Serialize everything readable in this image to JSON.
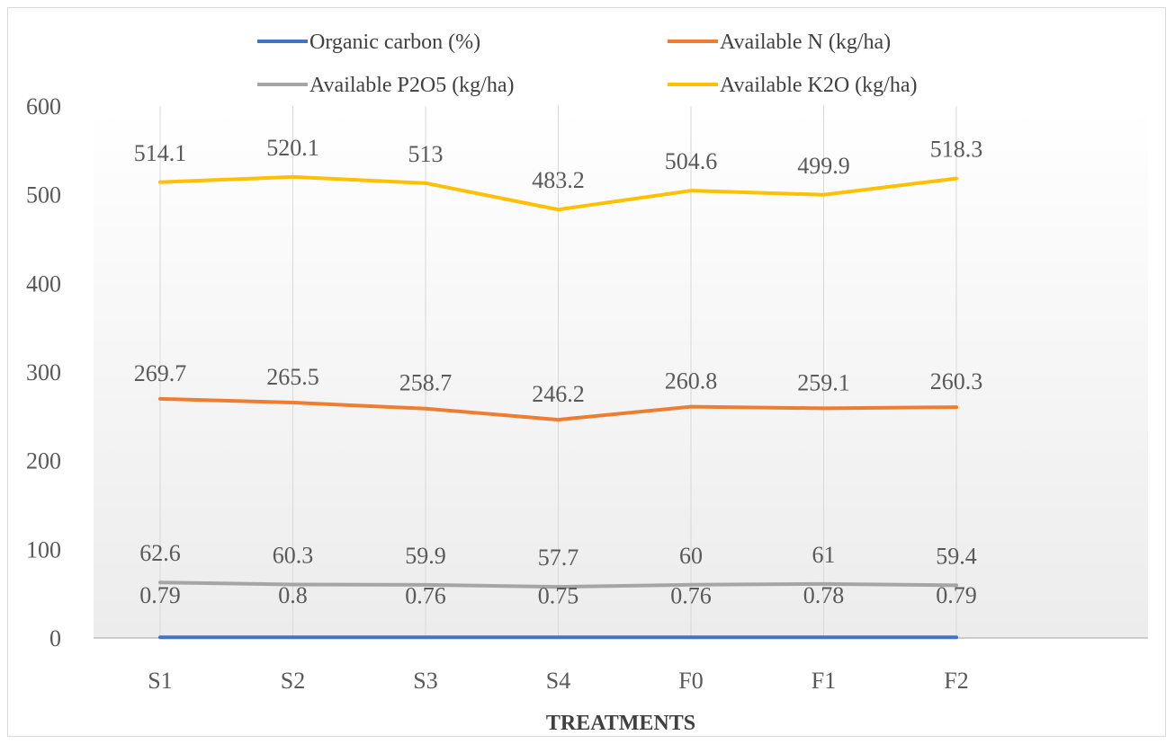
{
  "chart_data": {
    "type": "line",
    "categories": [
      "S1",
      "S2",
      "S3",
      "S4",
      "F0",
      "F1",
      "F2"
    ],
    "series": [
      {
        "name": "Organic carbon (%)",
        "values": [
          0.79,
          0.8,
          0.76,
          0.75,
          0.76,
          0.78,
          0.79
        ],
        "labels": [
          "0.79",
          "0.8",
          "0.76",
          "0.75",
          "0.76",
          "0.78",
          "0.79"
        ],
        "color": "#4472c4"
      },
      {
        "name": "Available N (kg/ha)",
        "values": [
          269.7,
          265.5,
          258.7,
          246.2,
          260.8,
          259.1,
          260.3
        ],
        "labels": [
          "269.7",
          "265.5",
          "258.7",
          "246.2",
          "260.8",
          "259.1",
          "260.3"
        ],
        "color": "#ed7d31"
      },
      {
        "name": "Available P2O5 (kg/ha)",
        "values": [
          62.6,
          60.3,
          59.9,
          57.7,
          60,
          61,
          59.4
        ],
        "labels": [
          "62.6",
          "60.3",
          "59.9",
          "57.7",
          "60",
          "61",
          "59.4"
        ],
        "color": "#a5a5a5"
      },
      {
        "name": "Available K2O (kg/ha)",
        "values": [
          514.1,
          520.1,
          513,
          483.2,
          504.6,
          499.9,
          518.3
        ],
        "labels": [
          "514.1",
          "520.1",
          "513",
          "483.2",
          "504.6",
          "499.9",
          "518.3"
        ],
        "color": "#ffc000"
      }
    ],
    "title": "",
    "xlabel": "TREATMENTS",
    "ylabel": "",
    "ylim": [
      0,
      600
    ],
    "yticks": [
      "0",
      "100",
      "200",
      "300",
      "400",
      "500",
      "600"
    ],
    "grid": "vertical",
    "legend": "top"
  }
}
